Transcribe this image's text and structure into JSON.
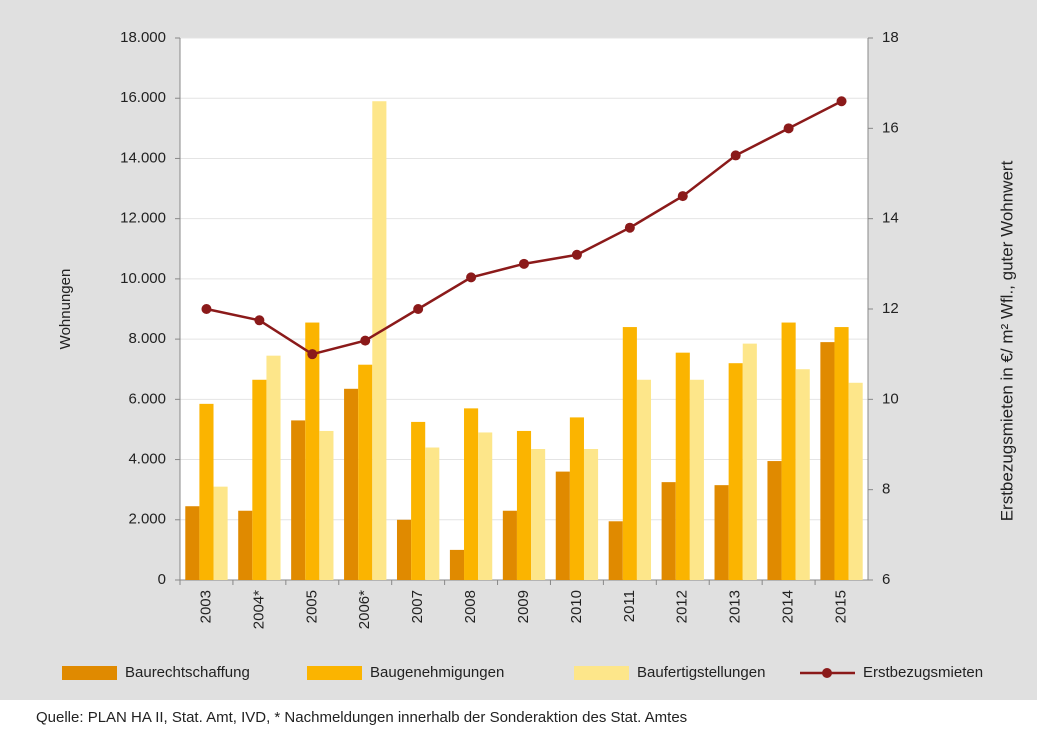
{
  "chart_data": {
    "type": "bar",
    "categories": [
      "2003",
      "2004*",
      "2005",
      "2006*",
      "2007",
      "2008",
      "2009",
      "2010",
      "2011",
      "2012",
      "2013",
      "2014",
      "2015"
    ],
    "series": [
      {
        "name": "Baurechtschaffung",
        "color": "#e08a00",
        "values": [
          2450,
          2300,
          5300,
          6350,
          2000,
          1000,
          2300,
          3600,
          1950,
          3250,
          3150,
          3950,
          7900
        ]
      },
      {
        "name": "Baugenehmigungen",
        "color": "#fbb400",
        "values": [
          5850,
          6650,
          8550,
          7150,
          5250,
          5700,
          4950,
          5400,
          8400,
          7550,
          7200,
          8550,
          8400
        ]
      },
      {
        "name": "Baufertigstellungen",
        "color": "#fde68a",
        "values": [
          3100,
          7450,
          4950,
          15900,
          4400,
          4900,
          4350,
          4350,
          6650,
          6650,
          7850,
          7000,
          6550
        ]
      },
      {
        "name": "Erstbezugsmieten",
        "color": "#8b1a1a",
        "type": "line",
        "axis": "y2",
        "values": [
          12.0,
          11.75,
          11.0,
          11.3,
          12.0,
          12.7,
          13.0,
          13.2,
          13.8,
          14.5,
          15.4,
          16.0,
          16.6
        ]
      }
    ],
    "ylabel": "Wohnungen",
    "y2label": "Erstbezugsmieten in €/ m² Wfl., guter Wohnwert",
    "ylim": [
      0,
      18000
    ],
    "yticks": [
      0,
      {
        "value": 2000,
        "label": "2.000"
      },
      {
        "value": 4000,
        "label": "4.000"
      },
      {
        "value": 6000,
        "label": "6.000"
      },
      {
        "value": 8000,
        "label": "8.000"
      },
      {
        "value": 10000,
        "label": "10.000"
      },
      {
        "value": 12000,
        "label": "12.000"
      },
      {
        "value": 14000,
        "label": "14.000"
      },
      {
        "value": 16000,
        "label": "16.000"
      },
      {
        "value": 18000,
        "label": "18.000"
      }
    ],
    "y2lim": [
      6,
      18
    ],
    "y2ticks": [
      6,
      8,
      10,
      12,
      14,
      16,
      18
    ],
    "grid": true,
    "legend": "bottom",
    "note": "Quelle: PLAN HA II, Stat. Amt, IVD, *  Nachmeldungen innerhalb der Sonderaktion des Stat. Amtes"
  }
}
